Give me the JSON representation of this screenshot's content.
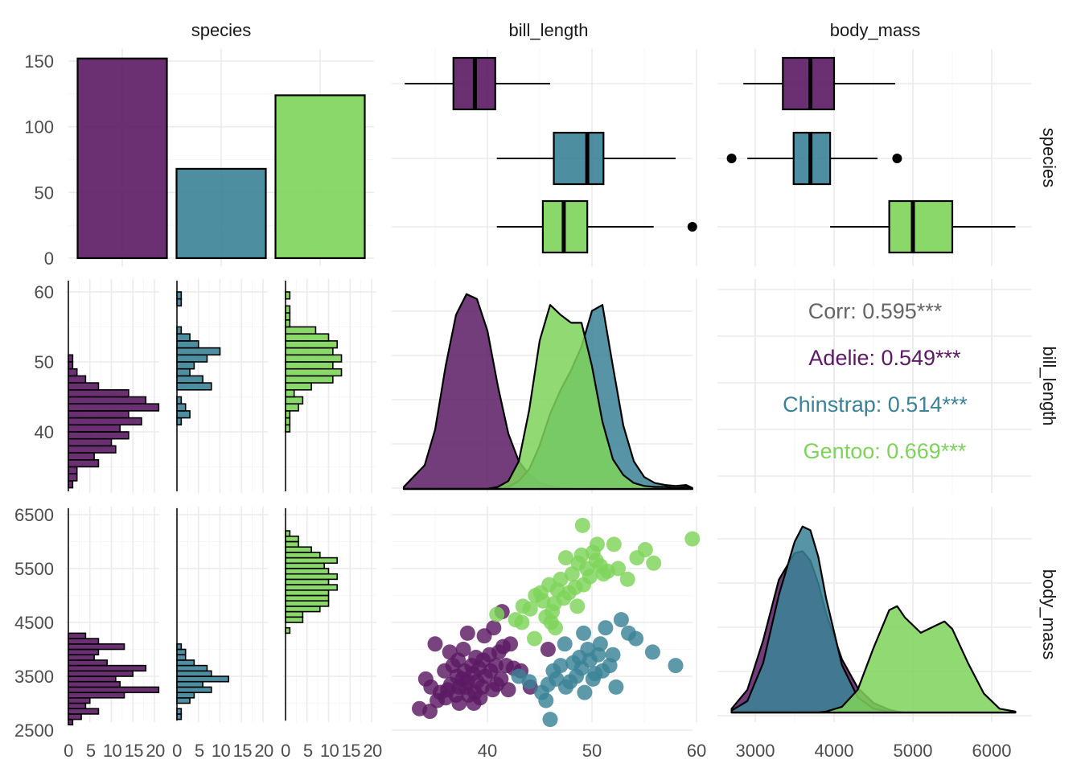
{
  "chart_data": {
    "type": "pairs",
    "title": "",
    "variables": [
      "species",
      "bill_length",
      "body_mass"
    ],
    "species": [
      "Adelie",
      "Chinstrap",
      "Gentoo"
    ],
    "colors": {
      "Adelie": "#5b1a63",
      "Chinstrap": "#3a8296",
      "Gentoo": "#7ed45a"
    },
    "ticks": {
      "species_count": [
        "0",
        "50",
        "100",
        "150"
      ],
      "bill_length": [
        "40",
        "50",
        "60"
      ],
      "body_mass_y": [
        "2500",
        "3500",
        "4500",
        "5500",
        "6500"
      ],
      "body_mass_x": [
        "3000",
        "4000",
        "5000",
        "6000"
      ],
      "histogram_count": [
        "0",
        "5",
        "10",
        "15",
        "20"
      ]
    },
    "species_counts": {
      "Adelie": 152,
      "Chinstrap": 68,
      "Gentoo": 124
    },
    "bill_length_boxplot": {
      "Adelie": {
        "min": 32.1,
        "q1": 36.75,
        "median": 38.8,
        "q3": 40.75,
        "max": 46.0,
        "outliers": []
      },
      "Chinstrap": {
        "min": 40.9,
        "q1": 46.35,
        "median": 49.55,
        "q3": 51.1,
        "max": 58.0,
        "outliers": []
      },
      "Gentoo": {
        "min": 40.9,
        "q1": 45.3,
        "median": 47.3,
        "q3": 49.55,
        "max": 55.9,
        "outliers": [
          59.6
        ]
      }
    },
    "body_mass_boxplot": {
      "Adelie": {
        "min": 2850,
        "q1": 3350,
        "median": 3700,
        "q3": 4000,
        "max": 4775,
        "outliers": []
      },
      "Chinstrap": {
        "min": 2900,
        "q1": 3487,
        "median": 3700,
        "q3": 3950,
        "max": 4550,
        "outliers": [
          2700,
          4800
        ]
      },
      "Gentoo": {
        "min": 3950,
        "q1": 4700,
        "median": 5000,
        "q3": 5500,
        "max": 6300,
        "outliers": []
      }
    },
    "correlation": {
      "overall": "Corr: 0.595***",
      "groups": [
        {
          "species": "Adelie",
          "text": "Adelie: 0.549***"
        },
        {
          "species": "Chinstrap",
          "text": "Chinstrap: 0.514***"
        },
        {
          "species": "Gentoo",
          "text": "Gentoo: 0.669***"
        }
      ]
    },
    "hist_bill_length": {
      "bin_start": 32,
      "bin_width": 1,
      "Adelie": [
        1,
        2,
        2,
        7,
        6,
        11,
        10,
        14,
        12,
        17,
        14,
        21,
        18,
        14,
        7,
        4,
        2,
        1,
        1,
        0,
        0,
        0,
        0,
        0,
        0,
        0,
        0,
        0
      ],
      "Chinstrap": [
        0,
        0,
        0,
        0,
        0,
        0,
        0,
        0,
        0,
        1,
        3,
        2,
        1,
        0,
        8,
        6,
        3,
        4,
        7,
        10,
        5,
        3,
        1,
        0,
        0,
        0,
        1,
        1
      ],
      "Gentoo": [
        0,
        0,
        0,
        0,
        0,
        0,
        0,
        0,
        1,
        1,
        1,
        3,
        4,
        2,
        6,
        11,
        13,
        11,
        13,
        11,
        12,
        10,
        7,
        1,
        1,
        1,
        0,
        1
      ]
    },
    "hist_body_mass": {
      "bin_start": 2600,
      "bin_width": 100,
      "Adelie": [
        1,
        3,
        7,
        4,
        5,
        13,
        21,
        12,
        11,
        15,
        18,
        9,
        6,
        7,
        13,
        7,
        4,
        0,
        0,
        0,
        0,
        0,
        0,
        0,
        0,
        0,
        0,
        0,
        0,
        0,
        0,
        0,
        0,
        0,
        0,
        0
      ],
      "Chinstrap": [
        0,
        1,
        1,
        0,
        3,
        4,
        8,
        6,
        12,
        8,
        7,
        4,
        2,
        2,
        1,
        0,
        0,
        0,
        0,
        0,
        0,
        0,
        0,
        0,
        0,
        0,
        0,
        0,
        0,
        0,
        0,
        0,
        0,
        0,
        0,
        0
      ],
      "Gentoo": [
        0,
        0,
        0,
        0,
        0,
        0,
        0,
        0,
        0,
        0,
        0,
        0,
        0,
        0,
        0,
        0,
        0,
        1,
        0,
        4,
        4,
        8,
        10,
        10,
        10,
        12,
        10,
        12,
        10,
        9,
        12,
        8,
        6,
        3,
        3,
        1
      ]
    },
    "density_bill_length": {
      "x": [
        32,
        34,
        35,
        36,
        37,
        38,
        39,
        40,
        41,
        42,
        43,
        44,
        45,
        46,
        47,
        48,
        49,
        50,
        51,
        52,
        53,
        54,
        55,
        56,
        57,
        58,
        59,
        59.6
      ],
      "Adelie": [
        0.01,
        0.12,
        0.3,
        0.62,
        0.88,
        0.985,
        0.96,
        0.8,
        0.52,
        0.28,
        0.14,
        0.07,
        0.03,
        0.015,
        0.005,
        0,
        0,
        0,
        0,
        0,
        0,
        0,
        0,
        0,
        0,
        0,
        0,
        0
      ],
      "Chinstrap": [
        0,
        0,
        0,
        0,
        0,
        0,
        0,
        0,
        0,
        0.01,
        0.04,
        0.1,
        0.22,
        0.38,
        0.5,
        0.6,
        0.72,
        0.9,
        0.93,
        0.62,
        0.32,
        0.14,
        0.06,
        0.03,
        0.02,
        0.015,
        0.02,
        0.005
      ],
      "Gentoo": [
        0,
        0,
        0,
        0,
        0,
        0,
        0,
        0,
        0.01,
        0.04,
        0.14,
        0.4,
        0.75,
        0.93,
        0.88,
        0.84,
        0.84,
        0.62,
        0.34,
        0.15,
        0.07,
        0.03,
        0.015,
        0.01,
        0.01,
        0.005,
        0.01,
        0.003
      ]
    },
    "density_body_mass": {
      "x": [
        2700,
        2900,
        3100,
        3300,
        3500,
        3600,
        3700,
        3800,
        3900,
        4100,
        4300,
        4500,
        4700,
        4800,
        4900,
        5100,
        5300,
        5400,
        5500,
        5700,
        5900,
        6100,
        6300
      ],
      "Adelie": [
        0.02,
        0.12,
        0.38,
        0.7,
        0.84,
        0.85,
        0.8,
        0.68,
        0.52,
        0.28,
        0.13,
        0.05,
        0.015,
        0.005,
        0,
        0,
        0,
        0,
        0,
        0,
        0,
        0,
        0
      ],
      "Chinstrap": [
        0.01,
        0.06,
        0.26,
        0.62,
        0.9,
        0.98,
        0.96,
        0.82,
        0.6,
        0.25,
        0.08,
        0.02,
        0.005,
        0,
        0,
        0,
        0,
        0,
        0,
        0,
        0,
        0,
        0
      ],
      "Gentoo": [
        0,
        0,
        0,
        0,
        0,
        0,
        0,
        0,
        0.005,
        0.03,
        0.12,
        0.34,
        0.54,
        0.56,
        0.5,
        0.42,
        0.46,
        0.48,
        0.44,
        0.26,
        0.1,
        0.02,
        0.005
      ]
    },
    "scatter_bill_length_vs_body_mass": {
      "Adelie": [
        [
          33.5,
          2900
        ],
        [
          34.5,
          2850
        ],
        [
          35.2,
          3050
        ],
        [
          34.6,
          3300
        ],
        [
          35.5,
          3200
        ],
        [
          36.0,
          3100
        ],
        [
          36.2,
          3250
        ],
        [
          36.5,
          3350
        ],
        [
          37.0,
          3150
        ],
        [
          37.1,
          3500
        ],
        [
          37.3,
          3000
        ],
        [
          37.6,
          3450
        ],
        [
          37.8,
          3600
        ],
        [
          37.9,
          3300
        ],
        [
          38.1,
          3400
        ],
        [
          38.2,
          3150
        ],
        [
          38.5,
          3700
        ],
        [
          38.6,
          3550
        ],
        [
          38.8,
          3200
        ],
        [
          38.9,
          3850
        ],
        [
          39.0,
          3400
        ],
        [
          39.2,
          3650
        ],
        [
          39.5,
          3300
        ],
        [
          39.6,
          3800
        ],
        [
          39.8,
          3500
        ],
        [
          40.2,
          3900
        ],
        [
          40.3,
          3600
        ],
        [
          40.5,
          3250
        ],
        [
          40.8,
          3700
        ],
        [
          41.1,
          3950
        ],
        [
          41.3,
          3450
        ],
        [
          41.5,
          4050
        ],
        [
          41.8,
          3700
        ],
        [
          42.2,
          4100
        ],
        [
          42.5,
          3650
        ],
        [
          36.7,
          3700
        ],
        [
          37.7,
          4000
        ],
        [
          38.1,
          4300
        ],
        [
          39.7,
          4250
        ],
        [
          40.6,
          4400
        ],
        [
          41.4,
          4700
        ],
        [
          35.0,
          4100
        ],
        [
          36.4,
          3950
        ],
        [
          34.1,
          3450
        ],
        [
          37.3,
          3300
        ],
        [
          38.7,
          3000
        ],
        [
          39.3,
          3100
        ],
        [
          40.9,
          3350
        ],
        [
          42.0,
          3250
        ],
        [
          43.2,
          3600
        ],
        [
          44.1,
          3300
        ],
        [
          45.8,
          4000
        ],
        [
          35.9,
          3600
        ],
        [
          37.2,
          3800
        ]
      ],
      "Chinstrap": [
        [
          43.0,
          3500
        ],
        [
          44.0,
          3400
        ],
        [
          45.2,
          3200
        ],
        [
          45.8,
          3350
        ],
        [
          46.0,
          2700
        ],
        [
          46.3,
          3600
        ],
        [
          46.6,
          3450
        ],
        [
          47.0,
          3700
        ],
        [
          47.5,
          3300
        ],
        [
          47.9,
          3400
        ],
        [
          48.2,
          3750
        ],
        [
          48.5,
          3500
        ],
        [
          48.8,
          3850
        ],
        [
          49.0,
          3650
        ],
        [
          49.3,
          3200
        ],
        [
          49.6,
          4000
        ],
        [
          49.8,
          3800
        ],
        [
          50.1,
          3450
        ],
        [
          50.3,
          3550
        ],
        [
          50.6,
          3900
        ],
        [
          50.8,
          4100
        ],
        [
          51.0,
          3600
        ],
        [
          51.3,
          4400
        ],
        [
          51.7,
          3700
        ],
        [
          52.0,
          3900
        ],
        [
          52.3,
          3300
        ],
        [
          52.8,
          4550
        ],
        [
          53.5,
          4300
        ],
        [
          54.2,
          4200
        ],
        [
          55.8,
          3950
        ],
        [
          58.0,
          3700
        ],
        [
          49.2,
          4300
        ],
        [
          47.4,
          4100
        ],
        [
          45.6,
          3050
        ]
      ],
      "Gentoo": [
        [
          40.9,
          4650
        ],
        [
          42.7,
          4550
        ],
        [
          43.4,
          4800
        ],
        [
          44.1,
          4750
        ],
        [
          44.6,
          5000
        ],
        [
          45.1,
          5050
        ],
        [
          45.3,
          4900
        ],
        [
          45.6,
          4600
        ],
        [
          45.9,
          5200
        ],
        [
          46.2,
          4700
        ],
        [
          46.4,
          4850
        ],
        [
          46.7,
          5100
        ],
        [
          47.0,
          5300
        ],
        [
          47.3,
          4950
        ],
        [
          47.5,
          5700
        ],
        [
          47.8,
          5050
        ],
        [
          48.1,
          5400
        ],
        [
          48.4,
          5150
        ],
        [
          48.7,
          5600
        ],
        [
          49.0,
          5750
        ],
        [
          49.2,
          5200
        ],
        [
          49.5,
          5500
        ],
        [
          49.8,
          5350
        ],
        [
          50.1,
          5800
        ],
        [
          50.4,
          5650
        ],
        [
          50.8,
          5550
        ],
        [
          51.1,
          5400
        ],
        [
          51.5,
          5450
        ],
        [
          52.1,
          5950
        ],
        [
          52.5,
          5500
        ],
        [
          53.4,
          5300
        ],
        [
          54.3,
          5700
        ],
        [
          55.1,
          5850
        ],
        [
          55.9,
          5600
        ],
        [
          59.6,
          6050
        ],
        [
          49.1,
          6300
        ],
        [
          50.5,
          5950
        ],
        [
          46.5,
          4400
        ],
        [
          44.5,
          4200
        ],
        [
          43.3,
          4500
        ],
        [
          46.1,
          4500
        ],
        [
          48.6,
          4800
        ]
      ]
    }
  }
}
